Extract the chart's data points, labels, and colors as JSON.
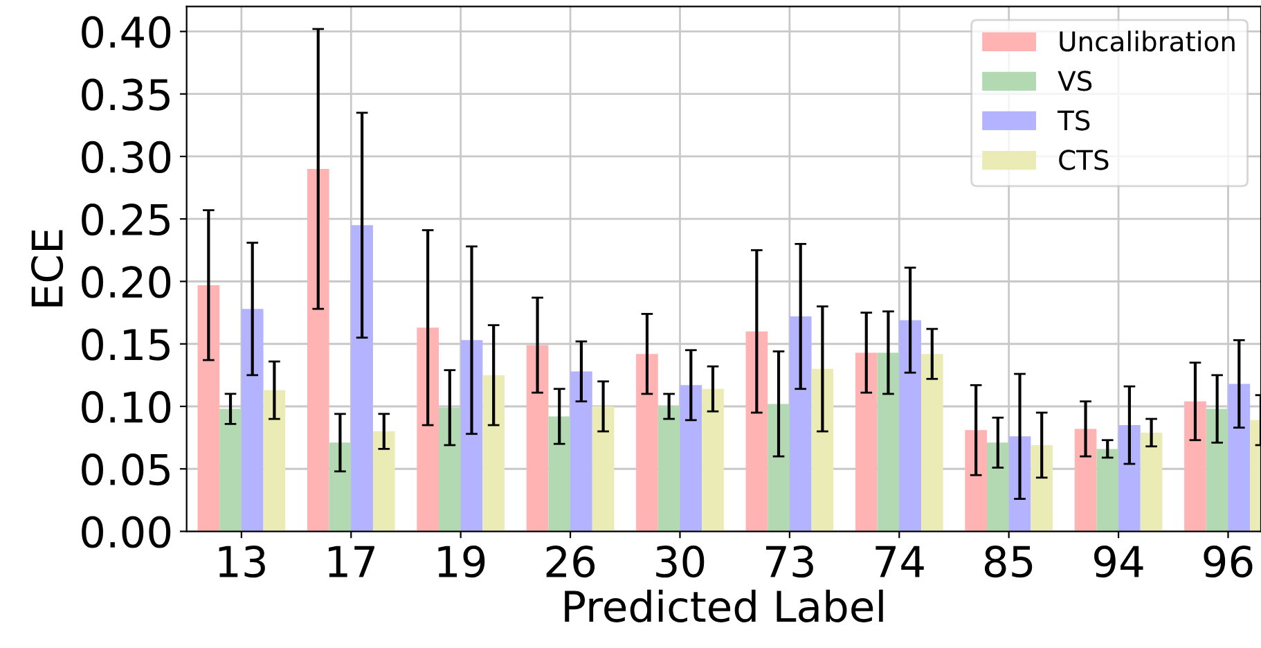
{
  "chart_data": {
    "type": "bar",
    "xlabel": "Predicted Label",
    "ylabel": "ECE",
    "categories": [
      "13",
      "17",
      "19",
      "26",
      "30",
      "73",
      "74",
      "85",
      "94",
      "96"
    ],
    "series": [
      {
        "name": "Uncalibration",
        "color": "#ffb3b3",
        "values": [
          0.197,
          0.29,
          0.163,
          0.149,
          0.142,
          0.16,
          0.143,
          0.081,
          0.082,
          0.104
        ],
        "errors": [
          0.06,
          0.112,
          0.078,
          0.038,
          0.032,
          0.065,
          0.032,
          0.036,
          0.022,
          0.031
        ]
      },
      {
        "name": "VS",
        "color": "#b3d9b3",
        "values": [
          0.098,
          0.071,
          0.099,
          0.092,
          0.1,
          0.102,
          0.143,
          0.071,
          0.066,
          0.098
        ],
        "errors": [
          0.012,
          0.023,
          0.03,
          0.022,
          0.01,
          0.042,
          0.033,
          0.02,
          0.007,
          0.027
        ]
      },
      {
        "name": "TS",
        "color": "#b3b3ff",
        "values": [
          0.178,
          0.245,
          0.153,
          0.128,
          0.117,
          0.172,
          0.169,
          0.076,
          0.085,
          0.118
        ],
        "errors": [
          0.053,
          0.09,
          0.075,
          0.024,
          0.028,
          0.058,
          0.042,
          0.05,
          0.031,
          0.035
        ]
      },
      {
        "name": "CTS",
        "color": "#ebebb6",
        "values": [
          0.113,
          0.08,
          0.125,
          0.1,
          0.114,
          0.13,
          0.142,
          0.069,
          0.079,
          0.089
        ],
        "errors": [
          0.023,
          0.014,
          0.04,
          0.02,
          0.018,
          0.05,
          0.02,
          0.026,
          0.011,
          0.02
        ]
      }
    ],
    "ylim": [
      0,
      0.42
    ],
    "yticks": [
      {
        "value": 0,
        "label": "0.00"
      },
      {
        "value": 0.05,
        "label": "0.05"
      },
      {
        "value": 0.1,
        "label": "0.10"
      },
      {
        "value": 0.15,
        "label": "0.15"
      },
      {
        "value": 0.2,
        "label": "0.20"
      },
      {
        "value": 0.25,
        "label": "0.25"
      },
      {
        "value": 0.3,
        "label": "0.30"
      },
      {
        "value": 0.35,
        "label": "0.35"
      },
      {
        "value": 0.4,
        "label": "0.40"
      }
    ],
    "grid": true,
    "legend": "top right"
  }
}
